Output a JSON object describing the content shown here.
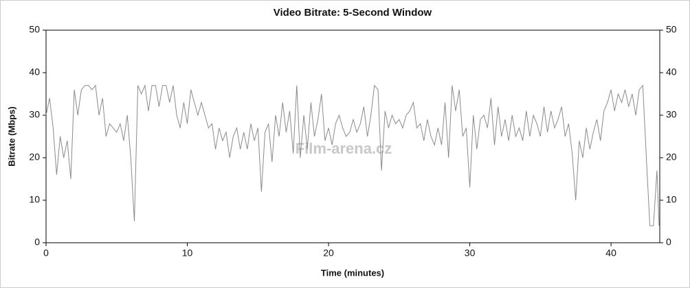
{
  "chart_data": {
    "type": "line",
    "title": "Video Bitrate: 5-Second Window",
    "x_label": "Time (minutes)",
    "y_label": "Bitrate (Mbps)",
    "watermark": "Film-arena.cz",
    "xlim": [
      0,
      43.45
    ],
    "xticks": [
      0,
      10,
      20,
      30,
      40
    ],
    "ylim": [
      0,
      50
    ],
    "yticks": [
      0,
      10,
      20,
      30,
      40,
      50
    ],
    "y2lim": [
      0,
      50
    ],
    "y2ticks": [
      0,
      10,
      20,
      30,
      40,
      50
    ],
    "color": "#8a8a8a",
    "x": [
      0,
      0.25,
      0.5,
      0.75,
      1,
      1.25,
      1.5,
      1.75,
      2,
      2.25,
      2.5,
      2.75,
      3,
      3.25,
      3.5,
      3.75,
      4,
      4.25,
      4.5,
      4.75,
      5,
      5.25,
      5.5,
      5.75,
      6,
      6.25,
      6.5,
      6.75,
      7,
      7.25,
      7.5,
      7.75,
      8,
      8.25,
      8.5,
      8.75,
      9,
      9.25,
      9.5,
      9.75,
      10,
      10.25,
      10.5,
      10.75,
      11,
      11.25,
      11.5,
      11.75,
      12,
      12.25,
      12.5,
      12.75,
      13,
      13.25,
      13.5,
      13.75,
      14,
      14.25,
      14.5,
      14.75,
      15,
      15.25,
      15.5,
      15.75,
      16,
      16.25,
      16.5,
      16.75,
      17,
      17.25,
      17.5,
      17.75,
      18,
      18.25,
      18.5,
      18.75,
      19,
      19.25,
      19.5,
      19.75,
      20,
      20.25,
      20.5,
      20.75,
      21,
      21.25,
      21.5,
      21.75,
      22,
      22.25,
      22.5,
      22.75,
      23,
      23.25,
      23.5,
      23.75,
      24,
      24.25,
      24.5,
      24.75,
      25,
      25.25,
      25.5,
      25.75,
      26,
      26.25,
      26.5,
      26.75,
      27,
      27.25,
      27.5,
      27.75,
      28,
      28.25,
      28.5,
      28.75,
      29,
      29.25,
      29.5,
      29.75,
      30,
      30.25,
      30.5,
      30.75,
      31,
      31.25,
      31.5,
      31.75,
      32,
      32.25,
      32.5,
      32.75,
      33,
      33.25,
      33.5,
      33.75,
      34,
      34.25,
      34.5,
      34.75,
      35,
      35.25,
      35.5,
      35.75,
      36,
      36.25,
      36.5,
      36.75,
      37,
      37.25,
      37.5,
      37.75,
      38,
      38.25,
      38.5,
      38.75,
      39,
      39.25,
      39.5,
      39.75,
      40,
      40.25,
      40.5,
      40.75,
      41,
      41.25,
      41.5,
      41.75,
      42,
      42.25,
      42.5,
      42.75,
      43,
      43.25,
      43.4
    ],
    "values": [
      30,
      34,
      27,
      16,
      25,
      20,
      24,
      15,
      36,
      30,
      36,
      37,
      37,
      36,
      37,
      30,
      34,
      25,
      28,
      27,
      26,
      28,
      24,
      30,
      20,
      5,
      37,
      35,
      37,
      31,
      37,
      37,
      32,
      37,
      37,
      33,
      37,
      30,
      27,
      33,
      28,
      36,
      33,
      30,
      33,
      30,
      27,
      28,
      22,
      27,
      24,
      26,
      20,
      25,
      27,
      22,
      26,
      22,
      28,
      24,
      27,
      12,
      26,
      28,
      19,
      30,
      25,
      33,
      26,
      31,
      21,
      37,
      20,
      30,
      22,
      33,
      25,
      29,
      35,
      24,
      27,
      23,
      28,
      30,
      27,
      25,
      26,
      29,
      26,
      28,
      32,
      25,
      30,
      37,
      36,
      17,
      31,
      27,
      30,
      28,
      29,
      27,
      30,
      31,
      33,
      27,
      28,
      24,
      29,
      25,
      23,
      27,
      23,
      33,
      20,
      37,
      31,
      36,
      25,
      27,
      13,
      30,
      22,
      29,
      30,
      27,
      34,
      23,
      32,
      25,
      29,
      24,
      30,
      25,
      27,
      24,
      31,
      25,
      30,
      28,
      25,
      32,
      26,
      31,
      27,
      29,
      32,
      25,
      28,
      21,
      10,
      24,
      20,
      27,
      22,
      26,
      29,
      24,
      31,
      33,
      36,
      31,
      35,
      33,
      36,
      32,
      35,
      30,
      36,
      37,
      20,
      4,
      4,
      17,
      4
    ]
  }
}
